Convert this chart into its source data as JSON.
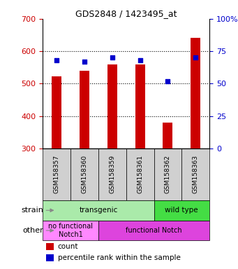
{
  "title": "GDS2848 / 1423495_at",
  "samples": [
    "GSM158357",
    "GSM158360",
    "GSM158359",
    "GSM158361",
    "GSM158362",
    "GSM158363"
  ],
  "counts": [
    522,
    540,
    560,
    560,
    380,
    642
  ],
  "percentiles": [
    68,
    67,
    70,
    68,
    52,
    70
  ],
  "ylim_left": [
    300,
    700
  ],
  "ylim_right": [
    0,
    100
  ],
  "yticks_left": [
    300,
    400,
    500,
    600,
    700
  ],
  "yticks_right": [
    0,
    25,
    50,
    75,
    100
  ],
  "ytick_labels_right": [
    "0",
    "25",
    "50",
    "75",
    "100%"
  ],
  "bar_color": "#cc0000",
  "percentile_color": "#0000cc",
  "strain_transgenic_color": "#aaeaaa",
  "strain_wildtype_color": "#44dd44",
  "other_nofunc_color": "#ff88ff",
  "other_func_color": "#dd44dd",
  "label_box_color": "#d0d0d0",
  "strain_labels": [
    {
      "label": "transgenic",
      "span": [
        0,
        4
      ],
      "color": "#aaeaaa"
    },
    {
      "label": "wild type",
      "span": [
        4,
        6
      ],
      "color": "#44dd44"
    }
  ],
  "other_labels": [
    {
      "label": "no functional\nNotch1",
      "span": [
        0,
        2
      ],
      "color": "#ff88ff"
    },
    {
      "label": "functional Notch",
      "span": [
        2,
        6
      ],
      "color": "#dd44dd"
    }
  ],
  "strain_row_label": "strain",
  "other_row_label": "other",
  "legend_count_label": "count",
  "legend_percentile_label": "percentile rank within the sample",
  "tick_label_color_left": "#cc0000",
  "tick_label_color_right": "#0000cc",
  "background_color": "#ffffff"
}
